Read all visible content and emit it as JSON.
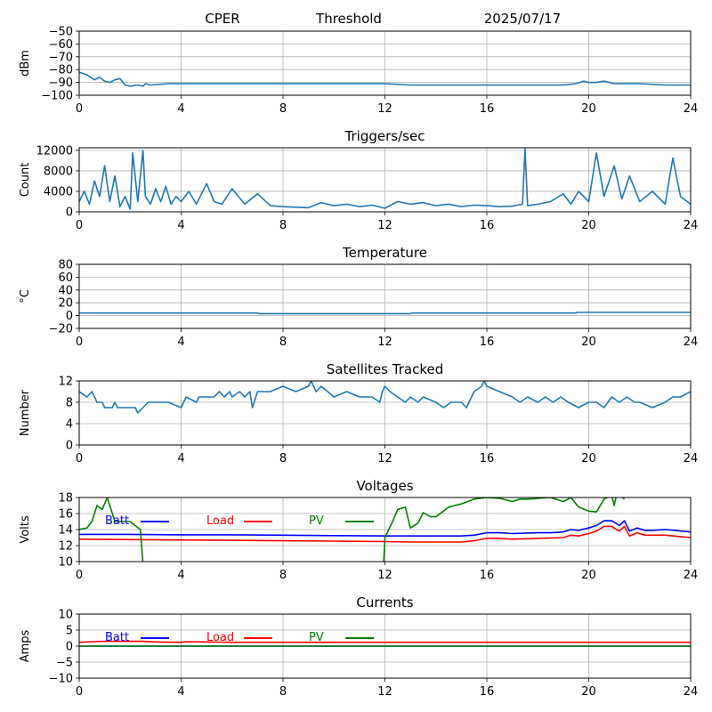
{
  "header": {
    "site": "CPER",
    "mode": "Threshold",
    "date": "2025/07/17"
  },
  "colors": {
    "series": "#1f77b4",
    "grid": "#b0b0b0",
    "batt": "#0000ff",
    "load": "#ff0000",
    "pv": "#008000"
  },
  "chart_data": [
    {
      "type": "line",
      "title": "",
      "xlabel": "",
      "ylabel": "dBm",
      "xlim": [
        0,
        24
      ],
      "ylim": [
        -100,
        -50
      ],
      "xticks": [
        0,
        4,
        8,
        12,
        16,
        20,
        24
      ],
      "yticks": [
        -100,
        -90,
        -80,
        -70,
        -60,
        -50
      ],
      "grid": true,
      "series": [
        {
          "x": [
            0,
            0.3,
            0.6,
            0.8,
            1.0,
            1.2,
            1.4,
            1.6,
            1.8,
            2.0,
            2.3,
            2.5,
            2.6,
            2.8,
            3.5,
            5,
            6,
            7,
            8,
            9,
            10,
            11,
            12,
            13,
            14,
            15,
            16,
            17,
            18,
            19,
            19.5,
            19.8,
            20,
            20.3,
            20.6,
            21,
            22,
            23,
            24
          ],
          "y": [
            -82,
            -84,
            -88,
            -86,
            -89,
            -90,
            -88,
            -87,
            -92,
            -93,
            -92,
            -93,
            -91,
            -92,
            -91,
            -91,
            -91,
            -91,
            -91,
            -91,
            -91,
            -91,
            -91,
            -92,
            -92,
            -92,
            -92,
            -92,
            -92,
            -92,
            -91,
            -89,
            -90,
            -90,
            -89,
            -91,
            -91,
            -92,
            -92
          ]
        }
      ]
    },
    {
      "type": "line",
      "title": "Triggers/sec",
      "xlabel": "",
      "ylabel": "Count",
      "xlim": [
        0,
        24
      ],
      "ylim": [
        0,
        12500
      ],
      "xticks": [
        0,
        4,
        8,
        12,
        16,
        20,
        24
      ],
      "yticks": [
        0,
        4000,
        8000,
        12000
      ],
      "grid": true,
      "series": [
        {
          "x": [
            0,
            0.2,
            0.4,
            0.6,
            0.8,
            1.0,
            1.2,
            1.4,
            1.6,
            1.8,
            2.0,
            2.1,
            2.3,
            2.5,
            2.6,
            2.8,
            3.0,
            3.2,
            3.4,
            3.6,
            3.8,
            4.0,
            4.3,
            4.6,
            5.0,
            5.3,
            5.6,
            6.0,
            6.5,
            7.0,
            7.5,
            8.0,
            8.5,
            9.0,
            9.5,
            10.0,
            10.5,
            11.0,
            11.5,
            12.0,
            12.5,
            13.0,
            13.5,
            14.0,
            14.5,
            15.0,
            15.5,
            16.0,
            16.5,
            17.0,
            17.4,
            17.5,
            17.6,
            18.0,
            18.5,
            19.0,
            19.3,
            19.6,
            20.0,
            20.3,
            20.6,
            21.0,
            21.3,
            21.6,
            22.0,
            22.5,
            23.0,
            23.3,
            23.6,
            24.0
          ],
          "y": [
            2000,
            4000,
            1500,
            6000,
            3000,
            9000,
            2000,
            7000,
            1000,
            3000,
            500,
            11500,
            2000,
            12000,
            3000,
            1500,
            4500,
            2000,
            5000,
            1500,
            3000,
            2000,
            4000,
            1500,
            5500,
            2000,
            1500,
            4500,
            1500,
            3500,
            1200,
            1000,
            900,
            800,
            1800,
            1200,
            1500,
            1000,
            1300,
            700,
            2000,
            1500,
            1800,
            1200,
            1500,
            1000,
            1300,
            1200,
            1000,
            1100,
            1500,
            12300,
            1200,
            1500,
            2000,
            3500,
            1500,
            4000,
            2000,
            11500,
            3000,
            9000,
            2500,
            7000,
            2000,
            4000,
            1500,
            10500,
            3000,
            1500
          ]
        }
      ]
    },
    {
      "type": "line",
      "title": "Temperature",
      "xlabel": "",
      "ylabel": "°C",
      "xlim": [
        0,
        24
      ],
      "ylim": [
        -20,
        80
      ],
      "xticks": [
        0,
        4,
        8,
        12,
        16,
        20,
        24
      ],
      "yticks": [
        -20,
        0,
        20,
        40,
        60,
        80
      ],
      "grid": true,
      "series": [
        {
          "x": [
            0,
            7,
            7.05,
            13,
            13.05,
            19.5,
            19.55,
            24
          ],
          "y": [
            4,
            4,
            3,
            3,
            4,
            4,
            5,
            5
          ]
        }
      ]
    },
    {
      "type": "line",
      "title": "Satellites Tracked",
      "xlabel": "",
      "ylabel": "Number",
      "xlim": [
        0,
        24
      ],
      "ylim": [
        0,
        12
      ],
      "xticks": [
        0,
        4,
        8,
        12,
        16,
        20,
        24
      ],
      "yticks": [
        0,
        4,
        8,
        12
      ],
      "grid": true,
      "series": [
        {
          "x": [
            0,
            0.3,
            0.5,
            0.6,
            0.7,
            0.9,
            1.0,
            1.3,
            1.4,
            1.5,
            1.7,
            1.8,
            2.2,
            2.3,
            2.5,
            2.7,
            3.0,
            3.5,
            4.0,
            4.1,
            4.2,
            4.6,
            4.7,
            5.0,
            5.3,
            5.5,
            5.7,
            5.9,
            6.0,
            6.3,
            6.5,
            6.7,
            6.8,
            7.0,
            7.2,
            7.5,
            8.0,
            8.5,
            9.0,
            9.1,
            9.3,
            9.5,
            10.0,
            10.5,
            11.0,
            11.5,
            11.8,
            11.9,
            12.0,
            12.2,
            12.5,
            12.8,
            13.0,
            13.3,
            13.5,
            14.0,
            14.3,
            14.6,
            15.0,
            15.2,
            15.5,
            15.8,
            15.9,
            16.0,
            16.5,
            17.0,
            17.3,
            17.6,
            18.0,
            18.3,
            18.6,
            18.9,
            19.2,
            19.6,
            20.0,
            20.3,
            20.6,
            20.9,
            21.2,
            21.5,
            21.8,
            22.0,
            22.5,
            23.0,
            23.3,
            23.6,
            24.0
          ],
          "y": [
            10,
            9,
            10,
            9,
            8,
            8,
            7,
            7,
            8,
            7,
            7,
            7,
            7,
            6,
            7,
            8,
            8,
            8,
            7,
            8,
            9,
            8,
            9,
            9,
            9,
            10,
            9,
            10,
            9,
            10,
            9,
            10,
            7,
            10,
            10,
            10,
            11,
            10,
            11,
            12,
            10,
            11,
            9,
            10,
            9,
            9,
            8,
            10,
            11,
            10,
            9,
            8,
            9,
            8,
            9,
            8,
            7,
            8,
            8,
            7,
            10,
            11,
            12,
            11,
            10,
            9,
            8,
            9,
            8,
            9,
            8,
            9,
            8,
            7,
            8,
            8,
            7,
            9,
            8,
            9,
            8,
            8,
            7,
            8,
            9,
            9,
            10
          ]
        }
      ]
    },
    {
      "type": "line",
      "title": "Voltages",
      "xlabel": "",
      "ylabel": "Volts",
      "xlim": [
        0,
        24
      ],
      "ylim": [
        10,
        18
      ],
      "xticks": [
        0,
        4,
        8,
        12,
        16,
        20,
        24
      ],
      "yticks": [
        10,
        12,
        14,
        16,
        18
      ],
      "grid": true,
      "legend": "top-left, inline",
      "series": [
        {
          "name": "Batt",
          "color": "#0000ff",
          "x": [
            0,
            2,
            4,
            6,
            8,
            10,
            12,
            13,
            14,
            15,
            15.5,
            16,
            16.5,
            17,
            18,
            18.5,
            19,
            19.3,
            19.6,
            20,
            20.3,
            20.6,
            20.9,
            21.2,
            21.4,
            21.6,
            21.9,
            22.2,
            22.5,
            23,
            24
          ],
          "y": [
            13.4,
            13.4,
            13.35,
            13.35,
            13.3,
            13.25,
            13.2,
            13.2,
            13.2,
            13.2,
            13.3,
            13.6,
            13.6,
            13.5,
            13.6,
            13.6,
            13.7,
            14.0,
            13.9,
            14.2,
            14.5,
            15.1,
            15.1,
            14.5,
            15.1,
            13.8,
            14.2,
            13.9,
            13.9,
            14.0,
            13.7
          ]
        },
        {
          "name": "Load",
          "color": "#ff0000",
          "x": [
            0,
            2,
            4,
            6,
            8,
            10,
            12,
            13,
            14,
            15,
            15.5,
            16,
            16.5,
            17,
            18,
            18.5,
            19,
            19.3,
            19.6,
            20,
            20.3,
            20.6,
            20.9,
            21.2,
            21.4,
            21.6,
            21.9,
            22.2,
            22.5,
            23,
            24
          ],
          "y": [
            12.8,
            12.75,
            12.7,
            12.65,
            12.6,
            12.55,
            12.5,
            12.45,
            12.45,
            12.45,
            12.6,
            12.9,
            12.9,
            12.8,
            12.9,
            12.95,
            13.0,
            13.3,
            13.2,
            13.5,
            13.8,
            14.4,
            14.4,
            13.8,
            14.4,
            13.2,
            13.6,
            13.3,
            13.3,
            13.3,
            13.0
          ]
        },
        {
          "name": "PV",
          "color": "#008000",
          "x": [
            0,
            0.3,
            0.5,
            0.7,
            0.9,
            1.1,
            1.2,
            1.4,
            1.6,
            2.0,
            2.2,
            2.4,
            2.5,
            11.95,
            12.0,
            12.3,
            12.5,
            12.8,
            13.0,
            13.3,
            13.5,
            13.8,
            14.0,
            14.5,
            15.0,
            15.5,
            16.0,
            16.5,
            17.0,
            17.3,
            17.6,
            18.0,
            18.5,
            19.0,
            19.3,
            19.6,
            20.0,
            20.3,
            20.6,
            20.9,
            21.0,
            21.1,
            21.4
          ],
          "y": [
            14.0,
            14.2,
            15.0,
            17.0,
            16.5,
            18.0,
            17.0,
            15.0,
            15.0,
            15.0,
            14.5,
            14.0,
            9.8,
            9.8,
            13.0,
            15.0,
            16.5,
            16.8,
            14.2,
            14.8,
            16.1,
            15.6,
            15.6,
            16.8,
            17.2,
            17.8,
            18.0,
            17.9,
            17.5,
            17.8,
            17.8,
            17.9,
            18.0,
            17.5,
            18.0,
            16.8,
            16.3,
            16.2,
            17.8,
            18.3,
            17.0,
            18.5,
            17.8
          ]
        }
      ]
    },
    {
      "type": "line",
      "title": "Currents",
      "xlabel": "",
      "ylabel": "Amps",
      "xlim": [
        0,
        24
      ],
      "ylim": [
        -10,
        10
      ],
      "xticks": [
        0,
        4,
        8,
        12,
        16,
        20,
        24
      ],
      "yticks": [
        -10,
        -5,
        0,
        5,
        10
      ],
      "grid": true,
      "legend": "top-left, inline",
      "series": [
        {
          "name": "Batt",
          "color": "#0000ff",
          "x": [
            0,
            24
          ],
          "y": [
            0,
            0
          ]
        },
        {
          "name": "Load",
          "color": "#ff0000",
          "x": [
            0,
            0.5,
            1,
            2,
            2.5,
            3,
            4,
            4.2,
            6,
            8,
            12,
            16,
            20,
            24
          ],
          "y": [
            1.2,
            1.4,
            1.5,
            1.5,
            1.5,
            1.3,
            1.2,
            1.4,
            1.2,
            1.2,
            1.2,
            1.2,
            1.2,
            1.2
          ]
        },
        {
          "name": "PV",
          "color": "#008000",
          "x": [
            0,
            24
          ],
          "y": [
            0,
            0
          ]
        }
      ]
    }
  ]
}
